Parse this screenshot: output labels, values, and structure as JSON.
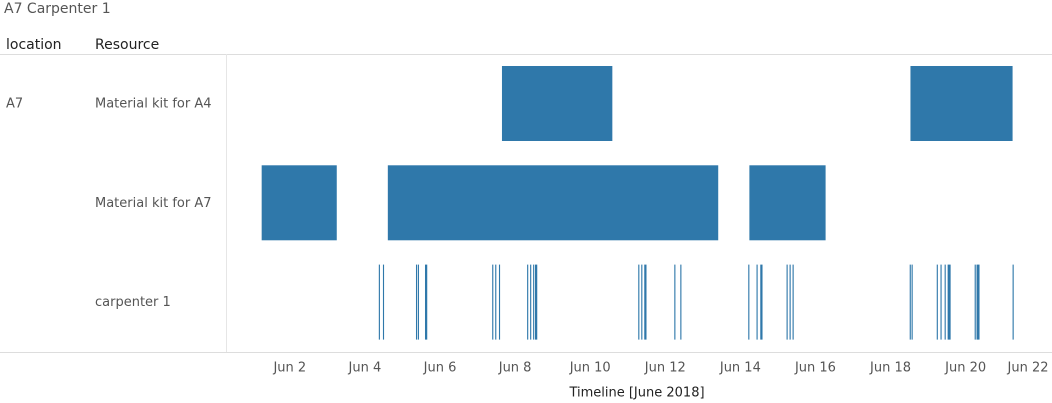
{
  "chart_data": {
    "type": "gantt",
    "title": "A7 Carpenter 1",
    "location_header": "location",
    "resource_header": "Resource",
    "x_label": "Timeline [June 2018]",
    "color": "#2f78aa",
    "xlim": [
      0.3,
      22.3
    ],
    "xticks": [
      {
        "value": 2,
        "label": "Jun 2"
      },
      {
        "value": 4,
        "label": "Jun 4"
      },
      {
        "value": 6,
        "label": "Jun 6"
      },
      {
        "value": 8,
        "label": "Jun 8"
      },
      {
        "value": 10,
        "label": "Jun 10"
      },
      {
        "value": 12,
        "label": "Jun 12"
      },
      {
        "value": 14,
        "label": "Jun 14"
      },
      {
        "value": 16,
        "label": "Jun 16"
      },
      {
        "value": 18,
        "label": "Jun 18"
      },
      {
        "value": 20,
        "label": "Jun 20"
      },
      {
        "value": 22,
        "label": "Jun 22"
      }
    ],
    "locations": [
      {
        "name": "A7",
        "resources": [
          {
            "name": "Material kit for A4",
            "start": [
              7.65,
              18.53
            ],
            "end": [
              10.59,
              21.25
            ]
          },
          {
            "name": "Material kit for A7",
            "start": [
              1.25,
              4.61,
              14.24
            ],
            "end": [
              3.25,
              13.41,
              16.27
            ]
          },
          {
            "name": "carpenter 1",
            "start": [
              4.37,
              4.48,
              5.36,
              5.41,
              5.6,
              7.39,
              7.47,
              7.57,
              8.32,
              8.4,
              8.48,
              8.53,
              11.28,
              11.36,
              11.44,
              12.24,
              12.4,
              14.21,
              14.43,
              14.53,
              15.23,
              15.31,
              15.39,
              18.51,
              18.56,
              19.23,
              19.33,
              19.44,
              19.52,
              20.24,
              20.29,
              21.25
            ],
            "end": [
              4.4,
              4.51,
              5.39,
              5.44,
              5.66,
              7.42,
              7.5,
              7.6,
              8.35,
              8.43,
              8.51,
              8.59,
              11.31,
              11.39,
              11.5,
              12.27,
              12.43,
              14.24,
              14.46,
              14.59,
              15.26,
              15.34,
              15.42,
              18.54,
              18.59,
              19.26,
              19.36,
              19.47,
              19.6,
              20.27,
              20.37,
              21.28
            ]
          }
        ]
      }
    ]
  }
}
